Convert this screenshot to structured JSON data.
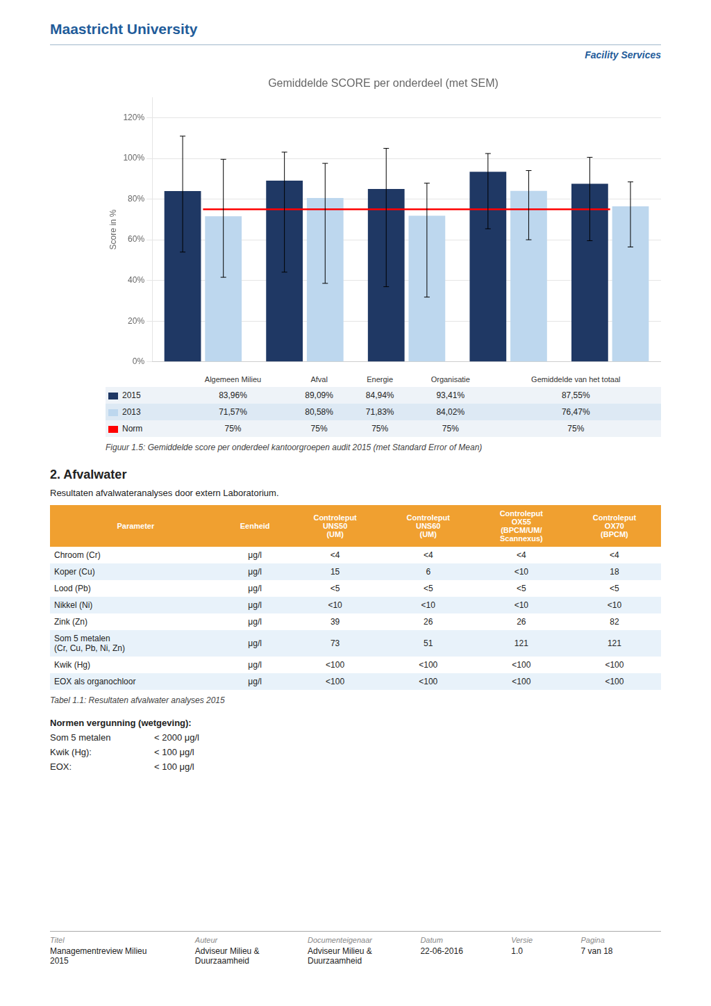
{
  "header": {
    "university": "Maastricht University",
    "department": "Facility Services"
  },
  "chart_data": {
    "type": "bar",
    "title": "Gemiddelde SCORE per onderdeel (met SEM)",
    "ylabel": "Score in %",
    "categories": [
      "Algemeen Milieu",
      "Afval",
      "Energie",
      "Organisatie",
      "Gemiddelde van het totaal"
    ],
    "series": [
      {
        "name": "2015",
        "color": "#1F3864",
        "values": [
          83.96,
          89.09,
          84.94,
          93.41,
          87.55
        ],
        "value_labels": [
          "83,96%",
          "89,09%",
          "84,94%",
          "93,41%",
          "87,55%"
        ],
        "error_upper": [
          27,
          14,
          20,
          9,
          13
        ],
        "error_lower": [
          30,
          45,
          48,
          28,
          28
        ]
      },
      {
        "name": "2013",
        "color": "#BDD7EE",
        "values": [
          71.57,
          80.58,
          71.83,
          84.02,
          76.47
        ],
        "value_labels": [
          "71,57%",
          "80,58%",
          "71,83%",
          "84,02%",
          "76,47%"
        ],
        "error_upper": [
          28,
          17,
          16,
          10,
          12
        ],
        "error_lower": [
          30,
          42,
          40,
          24,
          20
        ]
      },
      {
        "name": "Norm",
        "type": "line",
        "color": "#FF0000",
        "values": [
          75,
          75,
          75,
          75,
          75
        ],
        "value_labels": [
          "75%",
          "75%",
          "75%",
          "75%",
          "75%"
        ]
      }
    ],
    "ylim": [
      0,
      130
    ],
    "yticks": [
      {
        "value": 0,
        "label": "0%"
      },
      {
        "value": 20,
        "label": "20%"
      },
      {
        "value": 40,
        "label": "40%"
      },
      {
        "value": 60,
        "label": "60%"
      },
      {
        "value": 80,
        "label": "80%"
      },
      {
        "value": 100,
        "label": "100%"
      },
      {
        "value": 120,
        "label": "120%"
      }
    ],
    "grid": true,
    "tick_labels": "y"
  },
  "figure_caption": "Figuur 1.5: Gemiddelde score per onderdeel kantoorgroepen audit 2015 (met Standard Error of Mean)",
  "section": {
    "title": "2.  Afvalwater",
    "text": "Resultaten afvalwateranalyses door extern Laboratorium."
  },
  "table": {
    "header": [
      "Parameter",
      "Eenheid",
      "Controleput\nUNS50\n(UM)",
      "Controleput\nUNS60\n(UM)",
      "Controleput\nOX55\n(BPCM/UM/\nScannexus)",
      "Controleput\nOX70\n(BPCM)"
    ],
    "rows": [
      [
        "Chroom (Cr)",
        "μg/l",
        "<4",
        "<4",
        "<4",
        "<4"
      ],
      [
        "Koper (Cu)",
        "μg/l",
        "15",
        "6",
        "<10",
        "18"
      ],
      [
        "Lood (Pb)",
        "μg/l",
        "<5",
        "<5",
        "<5",
        "<5"
      ],
      [
        "Nikkel (Ni)",
        "μg/l",
        "<10",
        "<10",
        "<10",
        "<10"
      ],
      [
        "Zink (Zn)",
        "μg/l",
        "39",
        "26",
        "26",
        "82"
      ],
      [
        "Som 5 metalen\n(Cr, Cu, Pb, Ni, Zn)",
        "μg/l",
        "73",
        "51",
        "121",
        "121"
      ],
      [
        "Kwik (Hg)",
        "μg/l",
        "<100",
        "<100",
        "<100",
        "<100"
      ],
      [
        "EOX als organochloor",
        "μg/l",
        "<100",
        "<100",
        "<100",
        "<100"
      ]
    ],
    "caption": "Tabel 1.1: Resultaten afvalwater analyses 2015"
  },
  "normen": {
    "title": "Normen vergunning (wetgeving):",
    "rows": [
      [
        "Som 5 metalen",
        "< 2000 μg/l"
      ],
      [
        "Kwik (Hg):",
        "< 100 μg/l"
      ],
      [
        "EOX:",
        "< 100 μg/l"
      ]
    ]
  },
  "footer": {
    "labels": [
      "Titel",
      "Auteur",
      "Documenteigenaar",
      "Datum",
      "Versie",
      "Pagina"
    ],
    "values": [
      "Managementreview Milieu\n2015",
      "Adviseur Milieu &\nDuurzaamheid",
      "Adviseur Milieu &\nDuurzaamheid",
      "22-06-2016",
      "1.0",
      "7 van 18"
    ]
  }
}
